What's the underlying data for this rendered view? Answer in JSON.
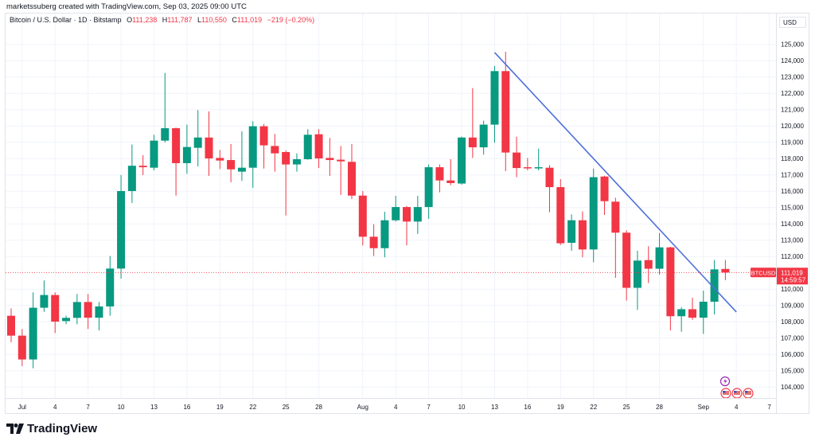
{
  "header": {
    "credit": "marketssuberg created with TradingView.com, Sep 03, 2025 09:00 UTC"
  },
  "legend": {
    "symbol_title": "Bitcoin / U.S. Dollar · 1D · Bitstamp",
    "open_key": "O",
    "open": "111,238",
    "high_key": "H",
    "high": "111,787",
    "low_key": "L",
    "low": "110,550",
    "close_key": "C",
    "close": "111,019",
    "change": "−219 (−0.20%)"
  },
  "price_axis": {
    "currency": "USD"
  },
  "current_price": {
    "symbol": "BTCUSD",
    "price": "111,019",
    "countdown": "14:59:57",
    "value": 111019
  },
  "branding": {
    "logo_text": "TradingView"
  },
  "colors": {
    "up": "#089981",
    "down": "#f23645",
    "trendline": "#4d6fdc",
    "grid": "#f0f3fa",
    "text": "#131722"
  },
  "icons": [
    "lightning-event-icon",
    "us-flag-icon",
    "us-flag-icon",
    "us-flag-icon"
  ],
  "chart_data": {
    "type": "candlestick",
    "title": "Bitcoin / U.S. Dollar · 1D · Bitstamp",
    "ylabel": "USD",
    "ylim": [
      103400,
      126500
    ],
    "xlim": [
      "2025-06-29",
      "2025-09-08"
    ],
    "grid": true,
    "y_ticks": [
      104000,
      105000,
      106000,
      107000,
      108000,
      109000,
      110000,
      112000,
      113000,
      114000,
      115000,
      116000,
      117000,
      118000,
      119000,
      120000,
      121000,
      122000,
      123000,
      124000,
      125000
    ],
    "x_ticks": [
      {
        "label": "Jul",
        "date": "2025-07-01"
      },
      {
        "label": "4",
        "date": "2025-07-04"
      },
      {
        "label": "7",
        "date": "2025-07-07"
      },
      {
        "label": "10",
        "date": "2025-07-10"
      },
      {
        "label": "13",
        "date": "2025-07-13"
      },
      {
        "label": "16",
        "date": "2025-07-16"
      },
      {
        "label": "19",
        "date": "2025-07-19"
      },
      {
        "label": "22",
        "date": "2025-07-22"
      },
      {
        "label": "25",
        "date": "2025-07-25"
      },
      {
        "label": "28",
        "date": "2025-07-28"
      },
      {
        "label": "Aug",
        "date": "2025-08-01"
      },
      {
        "label": "4",
        "date": "2025-08-04"
      },
      {
        "label": "7",
        "date": "2025-08-07"
      },
      {
        "label": "10",
        "date": "2025-08-10"
      },
      {
        "label": "13",
        "date": "2025-08-13"
      },
      {
        "label": "16",
        "date": "2025-08-16"
      },
      {
        "label": "19",
        "date": "2025-08-19"
      },
      {
        "label": "22",
        "date": "2025-08-22"
      },
      {
        "label": "25",
        "date": "2025-08-25"
      },
      {
        "label": "28",
        "date": "2025-08-28"
      },
      {
        "label": "Sep",
        "date": "2025-09-01"
      },
      {
        "label": "4",
        "date": "2025-09-04"
      },
      {
        "label": "7",
        "date": "2025-09-07"
      }
    ],
    "columns": [
      "date",
      "open",
      "high",
      "low",
      "close"
    ],
    "candles": [
      [
        "2025-06-30",
        108370,
        108820,
        106740,
        107150
      ],
      [
        "2025-07-01",
        107150,
        107560,
        105280,
        105690
      ],
      [
        "2025-07-02",
        105690,
        109800,
        105150,
        108860
      ],
      [
        "2025-07-03",
        108860,
        110530,
        108610,
        109640
      ],
      [
        "2025-07-04",
        109640,
        109800,
        107310,
        108010
      ],
      [
        "2025-07-05",
        108040,
        108370,
        107850,
        108240
      ],
      [
        "2025-07-06",
        108240,
        109700,
        107850,
        109210
      ],
      [
        "2025-07-07",
        109210,
        109700,
        107560,
        108250
      ],
      [
        "2025-07-08",
        108250,
        109210,
        107470,
        108940
      ],
      [
        "2025-07-09",
        108940,
        112030,
        108370,
        111260
      ],
      [
        "2025-07-10",
        111260,
        116990,
        110640,
        116010
      ],
      [
        "2025-07-11",
        116010,
        118860,
        115280,
        117560
      ],
      [
        "2025-07-12",
        117560,
        118210,
        116990,
        117470
      ],
      [
        "2025-07-13",
        117440,
        119460,
        117280,
        119100
      ],
      [
        "2025-07-14",
        119100,
        123250,
        118990,
        119860
      ],
      [
        "2025-07-15",
        119860,
        119900,
        115730,
        117720
      ],
      [
        "2025-07-16",
        117720,
        120080,
        117070,
        118710
      ],
      [
        "2025-07-17",
        118660,
        120970,
        117520,
        119290
      ],
      [
        "2025-07-18",
        119290,
        120890,
        116940,
        118010
      ],
      [
        "2025-07-19",
        118040,
        118530,
        117360,
        117880
      ],
      [
        "2025-07-20",
        117910,
        118890,
        116550,
        117340
      ],
      [
        "2025-07-21",
        117200,
        119670,
        116630,
        117440
      ],
      [
        "2025-07-22",
        117440,
        120290,
        116210,
        119980
      ],
      [
        "2025-07-23",
        119980,
        120120,
        117390,
        118810
      ],
      [
        "2025-07-24",
        118770,
        119510,
        117200,
        118320
      ],
      [
        "2025-07-25",
        118400,
        118500,
        114510,
        117640
      ],
      [
        "2025-07-26",
        117640,
        118320,
        117200,
        117960
      ],
      [
        "2025-07-27",
        117960,
        119800,
        117930,
        119460
      ],
      [
        "2025-07-28",
        119490,
        119800,
        117420,
        118010
      ],
      [
        "2025-07-29",
        118040,
        119260,
        116940,
        117910
      ],
      [
        "2025-07-30",
        117930,
        118770,
        115770,
        117830
      ],
      [
        "2025-07-31",
        117800,
        118890,
        115520,
        115730
      ],
      [
        "2025-08-01",
        115730,
        116010,
        112680,
        113210
      ],
      [
        "2025-08-02",
        113210,
        113980,
        112030,
        112510
      ],
      [
        "2025-08-03",
        112510,
        114740,
        111950,
        114220
      ],
      [
        "2025-08-04",
        114220,
        115720,
        114140,
        115030
      ],
      [
        "2025-08-05",
        115030,
        115100,
        112680,
        114140
      ],
      [
        "2025-08-06",
        114140,
        115720,
        113380,
        115030
      ],
      [
        "2025-08-07",
        115030,
        117640,
        114300,
        117470
      ],
      [
        "2025-08-08",
        117470,
        117640,
        115930,
        116660
      ],
      [
        "2025-08-09",
        116660,
        117960,
        116370,
        116500
      ],
      [
        "2025-08-10",
        116470,
        119350,
        116400,
        119290
      ],
      [
        "2025-08-11",
        119290,
        122320,
        118040,
        118690
      ],
      [
        "2025-08-12",
        118690,
        120320,
        118240,
        120080
      ],
      [
        "2025-08-13",
        120080,
        123680,
        118970,
        123360
      ],
      [
        "2025-08-14",
        123360,
        124550,
        117230,
        118370
      ],
      [
        "2025-08-15",
        118370,
        119340,
        116860,
        117420
      ],
      [
        "2025-08-16",
        117470,
        118040,
        117280,
        117440
      ],
      [
        "2025-08-17",
        117420,
        118610,
        117280,
        117470
      ],
      [
        "2025-08-18",
        117440,
        117600,
        114710,
        116250
      ],
      [
        "2025-08-19",
        116250,
        116740,
        112710,
        112810
      ],
      [
        "2025-08-20",
        112840,
        114580,
        112350,
        114220
      ],
      [
        "2025-08-21",
        114220,
        114760,
        111950,
        112430
      ],
      [
        "2025-08-22",
        112430,
        117390,
        111650,
        116860
      ],
      [
        "2025-08-23",
        116900,
        116950,
        114550,
        115390
      ],
      [
        "2025-08-24",
        115360,
        115600,
        110690,
        113460
      ],
      [
        "2025-08-25",
        113460,
        113600,
        109300,
        110080
      ],
      [
        "2025-08-26",
        110080,
        112350,
        108730,
        111750
      ],
      [
        "2025-08-27",
        111780,
        112630,
        110370,
        111250
      ],
      [
        "2025-08-28",
        111250,
        113440,
        110890,
        112560
      ],
      [
        "2025-08-29",
        112560,
        112600,
        107470,
        108340
      ],
      [
        "2025-08-30",
        108340,
        108890,
        107390,
        108770
      ],
      [
        "2025-08-31",
        108770,
        109470,
        108120,
        108250
      ],
      [
        "2025-09-01",
        108250,
        109910,
        107260,
        109230
      ],
      [
        "2025-09-02",
        109230,
        111780,
        108450,
        111210
      ],
      [
        "2025-09-03",
        111238,
        111787,
        110550,
        111019
      ]
    ],
    "trendline": {
      "start": {
        "date": "2025-08-13",
        "price": 124500
      },
      "end": {
        "date": "2025-09-04",
        "price": 108600
      }
    }
  }
}
